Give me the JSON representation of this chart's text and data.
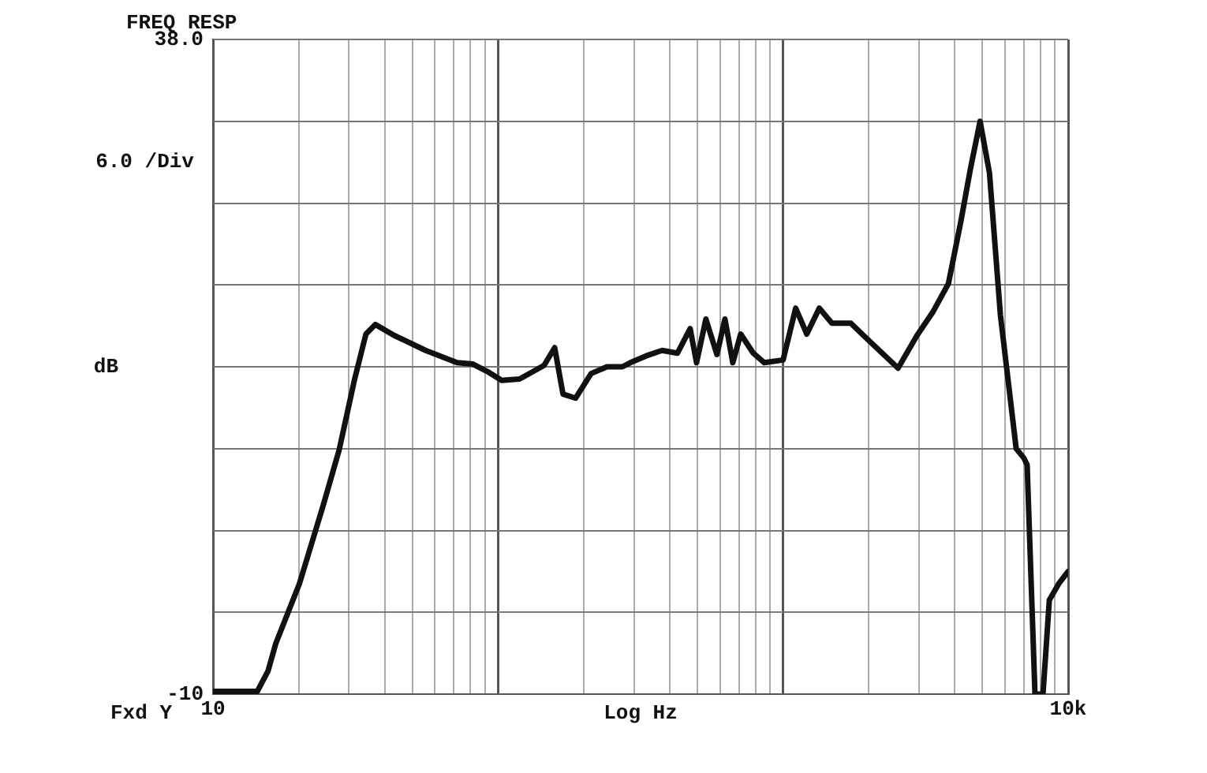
{
  "chart_data": {
    "type": "line",
    "title": "FREQ RESP",
    "xlabel": "Log Hz",
    "ylabel": "dB",
    "annotations": [
      "6.0 /Div",
      "Fxd Y"
    ],
    "log": "x",
    "grid": true,
    "legend": false,
    "marker": "none",
    "line_style": "solid",
    "xlim": [
      10,
      10000
    ],
    "xticks": [
      {
        "value": 10,
        "label": "10"
      },
      {
        "value": 20,
        "label": null
      },
      {
        "value": 30,
        "label": null
      },
      {
        "value": 40,
        "label": null
      },
      {
        "value": 50,
        "label": null
      },
      {
        "value": 60,
        "label": null
      },
      {
        "value": 70,
        "label": null
      },
      {
        "value": 80,
        "label": null
      },
      {
        "value": 90,
        "label": null
      },
      {
        "value": 100,
        "label": null
      },
      {
        "value": 200,
        "label": null
      },
      {
        "value": 300,
        "label": null
      },
      {
        "value": 400,
        "label": null
      },
      {
        "value": 500,
        "label": null
      },
      {
        "value": 600,
        "label": null
      },
      {
        "value": 700,
        "label": null
      },
      {
        "value": 800,
        "label": null
      },
      {
        "value": 900,
        "label": null
      },
      {
        "value": 1000,
        "label": null
      },
      {
        "value": 2000,
        "label": null
      },
      {
        "value": 3000,
        "label": null
      },
      {
        "value": 4000,
        "label": null
      },
      {
        "value": 5000,
        "label": null
      },
      {
        "value": 6000,
        "label": null
      },
      {
        "value": 7000,
        "label": null
      },
      {
        "value": 8000,
        "label": null
      },
      {
        "value": 9000,
        "label": null
      },
      {
        "value": 10000,
        "label": "10k"
      }
    ],
    "ylim": [
      -10,
      38
    ],
    "yticks": [
      {
        "value": 38,
        "label": "38.0"
      },
      {
        "value": 32,
        "label": null
      },
      {
        "value": 26,
        "label": null
      },
      {
        "value": 20,
        "label": null
      },
      {
        "value": 14,
        "label": null
      },
      {
        "value": 8,
        "label": null
      },
      {
        "value": 2,
        "label": null
      },
      {
        "value": -4,
        "label": null
      },
      {
        "value": -10,
        "label": "-10"
      }
    ],
    "series": [
      {
        "color": "#111111",
        "x": [
          10,
          14.3,
          15.6,
          16.6,
          20.1,
          24.4,
          27.7,
          31.4,
          34.4,
          37.1,
          43.2,
          55.7,
          71.8,
          81.6,
          92.7,
          103,
          119,
          145,
          158,
          169,
          187,
          212,
          241,
          273,
          291,
          331,
          376,
          426,
          472,
          497,
          536,
          586,
          625,
          666,
          710,
          786,
          859,
          1000,
          1107,
          1211,
          1340,
          1483,
          1728,
          1914,
          2531,
          2950,
          3350,
          3802,
          4207,
          4540,
          4909,
          5297,
          5785,
          6571,
          7000,
          7180,
          7650,
          8160,
          8590,
          9270,
          10000
        ],
        "values": [
          -9.8,
          -9.8,
          -8.3,
          -6.3,
          -1.9,
          3.9,
          7.9,
          13.1,
          16.4,
          17.1,
          16.3,
          15.2,
          14.3,
          14.2,
          13.6,
          13.0,
          13.1,
          14.1,
          15.4,
          12.0,
          11.7,
          13.5,
          14.0,
          14.0,
          14.3,
          14.8,
          15.2,
          15.0,
          16.8,
          14.3,
          17.5,
          14.9,
          17.5,
          14.3,
          16.4,
          15.0,
          14.3,
          14.5,
          18.3,
          16.4,
          18.3,
          17.2,
          17.2,
          16.3,
          13.9,
          16.3,
          18.0,
          20.1,
          24.7,
          28.5,
          32.0,
          28.2,
          17.8,
          8.0,
          7.3,
          6.8,
          -10,
          -10,
          -3.1,
          -1.9,
          -1.0
        ]
      }
    ]
  }
}
